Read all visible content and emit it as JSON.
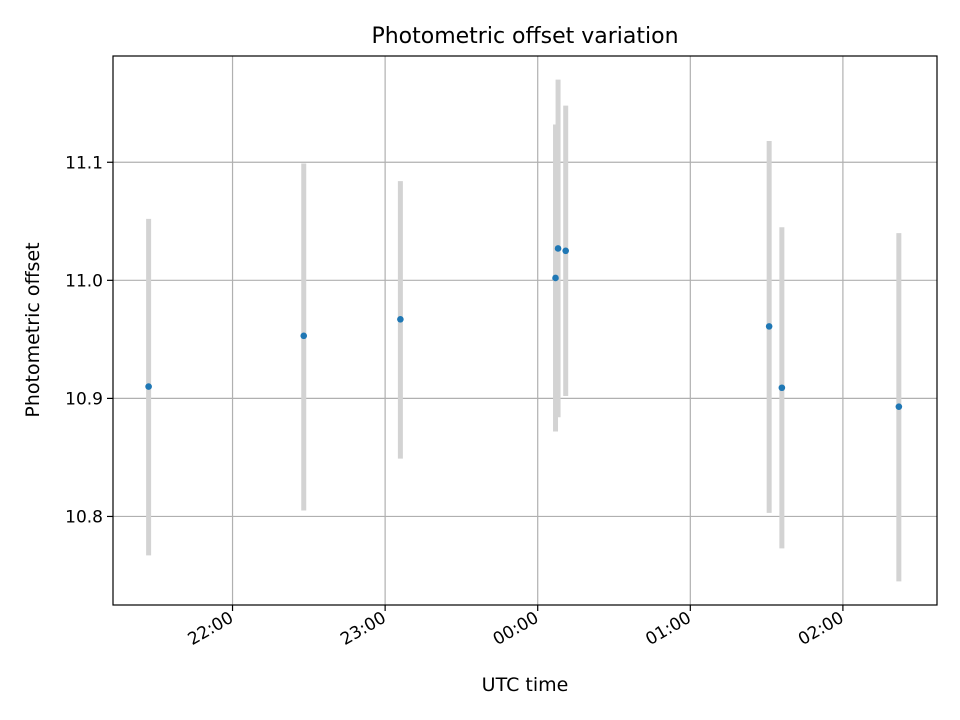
{
  "chart_data": {
    "type": "scatter",
    "title": "Photometric offset variation",
    "xlabel": "UTC time",
    "ylabel": "Photometric offset",
    "grid": true,
    "x_axis_kind": "time",
    "xlim": [
      "21:13",
      "02:37"
    ],
    "ylim": [
      10.725,
      11.19
    ],
    "x_ticks": [
      "22:00",
      "23:00",
      "00:00",
      "01:00",
      "02:00"
    ],
    "y_ticks": [
      10.8,
      10.9,
      11.0,
      11.1
    ],
    "y_tick_labels": [
      "10.8",
      "10.9",
      "11.0",
      "11.1"
    ],
    "points": [
      {
        "x": "21:27",
        "y": 10.91,
        "ylow": 10.767,
        "yhigh": 11.052
      },
      {
        "x": "22:28",
        "y": 10.953,
        "ylow": 10.805,
        "yhigh": 11.099
      },
      {
        "x": "23:06",
        "y": 10.967,
        "ylow": 10.849,
        "yhigh": 11.084
      },
      {
        "x": "00:07",
        "y": 11.002,
        "ylow": 10.872,
        "yhigh": 11.132
      },
      {
        "x": "00:08",
        "y": 11.027,
        "ylow": 10.884,
        "yhigh": 11.17
      },
      {
        "x": "00:11",
        "y": 11.025,
        "ylow": 10.902,
        "yhigh": 11.148
      },
      {
        "x": "01:31",
        "y": 10.961,
        "ylow": 10.803,
        "yhigh": 11.118
      },
      {
        "x": "01:36",
        "y": 10.909,
        "ylow": 10.773,
        "yhigh": 11.045
      },
      {
        "x": "02:22",
        "y": 10.893,
        "ylow": 10.745,
        "yhigh": 11.04
      }
    ],
    "colors": {
      "point": "#1f77b4",
      "errorbar": "#d3d3d3",
      "grid": "#b0b0b0",
      "axes": "#000000"
    }
  }
}
